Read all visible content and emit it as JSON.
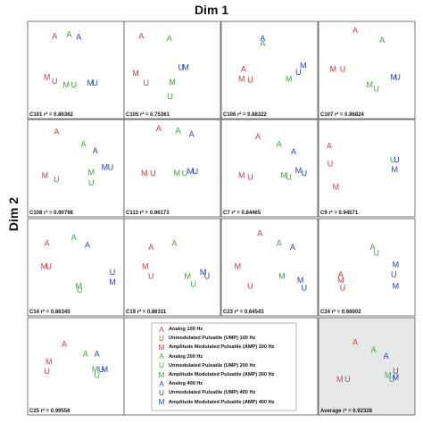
{
  "figure": {
    "title": "Dim 1",
    "ylabel": "Dim 2"
  },
  "colors": {
    "red": "#d9383a",
    "green": "#3aa63a",
    "blue": "#2040c8"
  },
  "legend": [
    {
      "letter": "A",
      "color": "red",
      "label": "Analog 100 Hz"
    },
    {
      "letter": "U",
      "color": "red",
      "label": "Unmodulated Pulsatile (UMP) 100 Hz"
    },
    {
      "letter": "M",
      "color": "red",
      "label": "Amplitude Modulated Pulsatile (AMP) 100 Hz"
    },
    {
      "letter": "A",
      "color": "green",
      "label": "Analog 200 Hz"
    },
    {
      "letter": "U",
      "color": "green",
      "label": "Unmodulated Pulsatile (UMP) 200 Hz"
    },
    {
      "letter": "M",
      "color": "green",
      "label": "Amplitude Modulated Pulsatile (AMP) 200 Hz"
    },
    {
      "letter": "A",
      "color": "blue",
      "label": "Analog 400 Hz"
    },
    {
      "letter": "U",
      "color": "blue",
      "label": "Unmodulated Pulsatile (UMP) 400 Hz"
    },
    {
      "letter": "M",
      "color": "blue",
      "label": "Amplitude Modulated Pulsatile (AMP) 400 Hz"
    }
  ],
  "chart_data": [
    {
      "type": "scatter",
      "label": "C101 r² = 0.86362",
      "points": [
        [
          "A",
          "red",
          0.28,
          0.18
        ],
        [
          "A",
          "green",
          0.43,
          0.16
        ],
        [
          "A",
          "blue",
          0.53,
          0.19
        ],
        [
          "M",
          "red",
          0.2,
          0.6
        ],
        [
          "U",
          "red",
          0.28,
          0.64
        ],
        [
          "M",
          "green",
          0.4,
          0.68
        ],
        [
          "U",
          "green",
          0.48,
          0.68
        ],
        [
          "M",
          "blue",
          0.65,
          0.66
        ],
        [
          "U",
          "blue",
          0.7,
          0.66
        ]
      ]
    },
    {
      "type": "scatter",
      "label": "C105 r² = 0.75361",
      "points": [
        [
          "A",
          "red",
          0.18,
          0.18
        ],
        [
          "A",
          "green",
          0.47,
          0.2
        ],
        [
          "M",
          "red",
          0.12,
          0.56
        ],
        [
          "U",
          "red",
          0.23,
          0.66
        ],
        [
          "U",
          "blue",
          0.59,
          0.5
        ],
        [
          "M",
          "blue",
          0.64,
          0.5
        ],
        [
          "M",
          "green",
          0.5,
          0.65
        ],
        [
          "U",
          "green",
          0.48,
          0.8
        ]
      ]
    },
    {
      "type": "scatter",
      "label": "C106 r² = 0.88322",
      "points": [
        [
          "A",
          "blue",
          0.43,
          0.2
        ],
        [
          "A",
          "green",
          0.43,
          0.25
        ],
        [
          "A",
          "red",
          0.23,
          0.52
        ],
        [
          "M",
          "red",
          0.21,
          0.62
        ],
        [
          "U",
          "red",
          0.3,
          0.63
        ],
        [
          "M",
          "green",
          0.7,
          0.62
        ],
        [
          "U",
          "blue",
          0.8,
          0.55
        ],
        [
          "M",
          "blue",
          0.85,
          0.48
        ]
      ]
    },
    {
      "type": "scatter",
      "label": "C107 r² = 0.86824",
      "points": [
        [
          "A",
          "red",
          0.38,
          0.12
        ],
        [
          "A",
          "green",
          0.66,
          0.22
        ],
        [
          "M",
          "red",
          0.15,
          0.52
        ],
        [
          "U",
          "red",
          0.25,
          0.52
        ],
        [
          "M",
          "green",
          0.53,
          0.68
        ],
        [
          "U",
          "green",
          0.6,
          0.72
        ],
        [
          "M",
          "blue",
          0.78,
          0.6
        ],
        [
          "U",
          "blue",
          0.82,
          0.6
        ]
      ]
    },
    {
      "type": "scatter",
      "label": "C108 r² = 0.90798",
      "points": [
        [
          "A",
          "red",
          0.3,
          0.15
        ],
        [
          "A",
          "green",
          0.58,
          0.28
        ],
        [
          "A",
          "blue",
          0.7,
          0.35
        ],
        [
          "M",
          "red",
          0.18,
          0.6
        ],
        [
          "U",
          "red",
          0.3,
          0.64
        ],
        [
          "M",
          "green",
          0.66,
          0.57
        ],
        [
          "U",
          "green",
          0.66,
          0.68
        ],
        [
          "M",
          "blue",
          0.8,
          0.52
        ],
        [
          "U",
          "blue",
          0.86,
          0.52
        ]
      ]
    },
    {
      "type": "scatter",
      "label": "C113 r² = 0.96173",
      "points": [
        [
          "A",
          "red",
          0.36,
          0.12
        ],
        [
          "A",
          "green",
          0.56,
          0.14
        ],
        [
          "A",
          "blue",
          0.7,
          0.18
        ],
        [
          "M",
          "red",
          0.21,
          0.58
        ],
        [
          "U",
          "red",
          0.3,
          0.58
        ],
        [
          "M",
          "green",
          0.55,
          0.58
        ],
        [
          "U",
          "green",
          0.63,
          0.58
        ],
        [
          "M",
          "blue",
          0.69,
          0.56
        ],
        [
          "U",
          "blue",
          0.74,
          0.56
        ]
      ]
    },
    {
      "type": "scatter",
      "label": "C7 r² = 0.84465",
      "points": [
        [
          "A",
          "red",
          0.38,
          0.2
        ],
        [
          "A",
          "green",
          0.6,
          0.28
        ],
        [
          "A",
          "blue",
          0.75,
          0.36
        ],
        [
          "M",
          "red",
          0.21,
          0.6
        ],
        [
          "U",
          "red",
          0.3,
          0.62
        ],
        [
          "M",
          "green",
          0.65,
          0.6
        ],
        [
          "U",
          "green",
          0.7,
          0.62
        ],
        [
          "M",
          "blue",
          0.8,
          0.55
        ],
        [
          "U",
          "blue",
          0.86,
          0.58
        ]
      ]
    },
    {
      "type": "scatter",
      "label": "C9 r² = 0.94571",
      "points": [
        [
          "A",
          "red",
          0.11,
          0.3
        ],
        [
          "U",
          "red",
          0.12,
          0.48
        ],
        [
          "M",
          "red",
          0.18,
          0.72
        ],
        [
          "U",
          "green",
          0.77,
          0.44
        ],
        [
          "U",
          "blue",
          0.81,
          0.44
        ],
        [
          "M",
          "blue",
          0.79,
          0.54
        ]
      ]
    },
    {
      "type": "scatter",
      "label": "C14 r² = 0.86345",
      "points": [
        [
          "A",
          "red",
          0.2,
          0.28
        ],
        [
          "A",
          "green",
          0.48,
          0.22
        ],
        [
          "A",
          "blue",
          0.62,
          0.3
        ],
        [
          "M",
          "red",
          0.17,
          0.52
        ],
        [
          "U",
          "red",
          0.22,
          0.52
        ],
        [
          "M",
          "green",
          0.53,
          0.72
        ],
        [
          "U",
          "green",
          0.54,
          0.76
        ],
        [
          "U",
          "blue",
          0.88,
          0.58
        ],
        [
          "M",
          "blue",
          0.88,
          0.68
        ]
      ]
    },
    {
      "type": "scatter",
      "label": "C19 r² = 0.86311",
      "points": [
        [
          "A",
          "red",
          0.28,
          0.32
        ],
        [
          "A",
          "green",
          0.52,
          0.28
        ],
        [
          "M",
          "red",
          0.22,
          0.52
        ],
        [
          "U",
          "red",
          0.28,
          0.62
        ],
        [
          "M",
          "green",
          0.66,
          0.62
        ],
        [
          "U",
          "green",
          0.72,
          0.7
        ],
        [
          "M",
          "blue",
          0.82,
          0.58
        ],
        [
          "U",
          "blue",
          0.86,
          0.62
        ]
      ]
    },
    {
      "type": "scatter",
      "label": "C23 r² = 0.64543",
      "points": [
        [
          "A",
          "red",
          0.4,
          0.18
        ],
        [
          "A",
          "green",
          0.6,
          0.28
        ],
        [
          "A",
          "blue",
          0.74,
          0.32
        ],
        [
          "M",
          "red",
          0.17,
          0.52
        ],
        [
          "U",
          "red",
          0.3,
          0.72
        ],
        [
          "M",
          "green",
          0.63,
          0.62
        ],
        [
          "M",
          "blue",
          0.82,
          0.66
        ],
        [
          "U",
          "blue",
          0.86,
          0.74
        ]
      ]
    },
    {
      "type": "scatter",
      "label": "C24 r² = 0.68002",
      "points": [
        [
          "A",
          "green",
          0.56,
          0.32
        ],
        [
          "U",
          "green",
          0.6,
          0.38
        ],
        [
          "A",
          "red",
          0.23,
          0.6
        ],
        [
          "M",
          "red",
          0.23,
          0.66
        ],
        [
          "U",
          "red",
          0.25,
          0.74
        ],
        [
          "M",
          "blue",
          0.8,
          0.5
        ],
        [
          "U",
          "blue",
          0.78,
          0.6
        ],
        [
          "M",
          "blue",
          0.8,
          0.72
        ]
      ]
    },
    {
      "type": "scatter",
      "label": "C25 r² = 0.99556",
      "points": [
        [
          "A",
          "red",
          0.38,
          0.3
        ],
        [
          "M",
          "red",
          0.22,
          0.48
        ],
        [
          "U",
          "red",
          0.2,
          0.58
        ],
        [
          "A",
          "green",
          0.6,
          0.4
        ],
        [
          "A",
          "blue",
          0.72,
          0.4
        ],
        [
          "M",
          "green",
          0.7,
          0.56
        ],
        [
          "U",
          "green",
          0.72,
          0.62
        ],
        [
          "U",
          "blue",
          0.76,
          0.56
        ],
        [
          "M",
          "blue",
          0.8,
          0.56
        ]
      ]
    },
    {
      "type": "scatter",
      "label": "Average r² = 0.92328",
      "avg": true,
      "points": [
        [
          "A",
          "red",
          0.38,
          0.28
        ],
        [
          "A",
          "green",
          0.57,
          0.36
        ],
        [
          "A",
          "blue",
          0.7,
          0.42
        ],
        [
          "M",
          "red",
          0.22,
          0.66
        ],
        [
          "U",
          "red",
          0.3,
          0.66
        ],
        [
          "M",
          "green",
          0.72,
          0.62
        ],
        [
          "U",
          "green",
          0.76,
          0.66
        ],
        [
          "U",
          "blue",
          0.8,
          0.58
        ],
        [
          "M",
          "blue",
          0.8,
          0.64
        ]
      ]
    }
  ]
}
